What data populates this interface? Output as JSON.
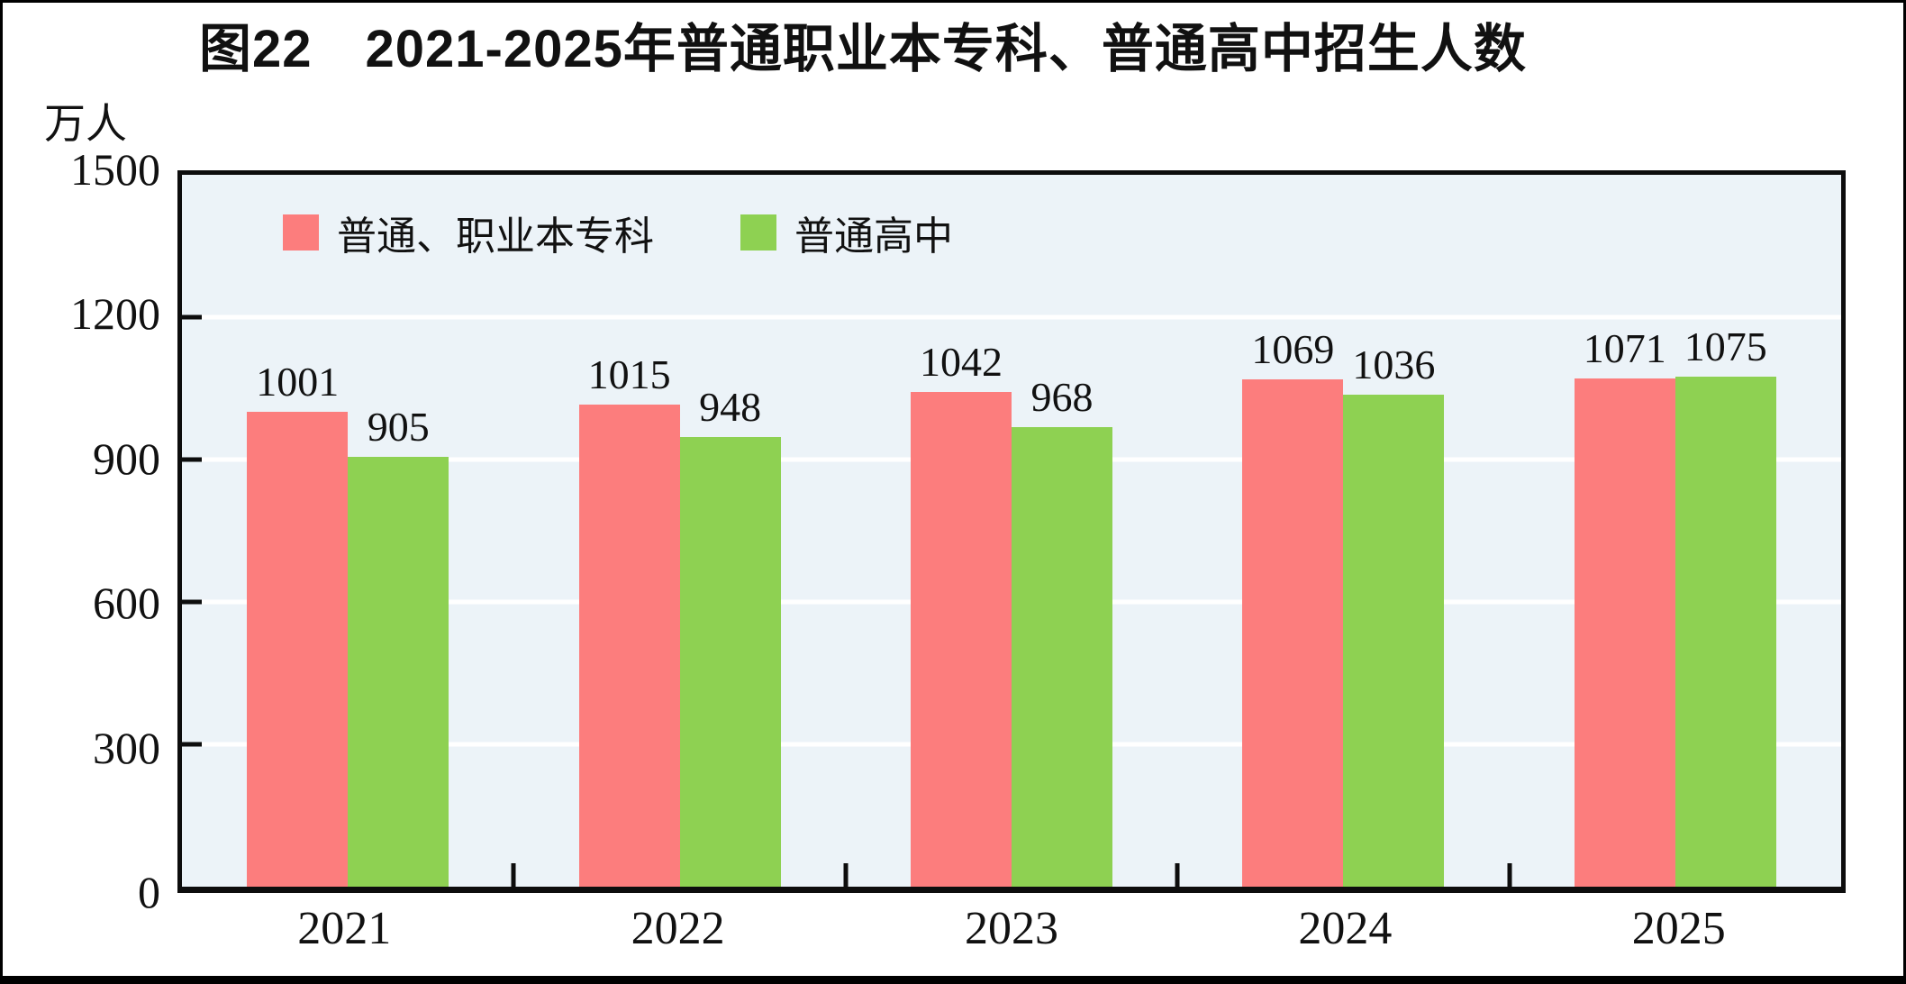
{
  "chart_data": {
    "type": "bar",
    "title": "图22　2021-2025年普通职业本专科、普通高中招生人数",
    "unit": "万人",
    "categories": [
      "2021",
      "2022",
      "2023",
      "2024",
      "2025"
    ],
    "series": [
      {
        "name": "普通、职业本专科",
        "color": "#fc7d7d",
        "values": [
          1001,
          1015,
          1042,
          1069,
          1071
        ]
      },
      {
        "name": "普通高中",
        "color": "#8ed152",
        "values": [
          905,
          948,
          968,
          1036,
          1075
        ]
      }
    ],
    "ylabel": "万人",
    "ylim": [
      0,
      1500
    ],
    "yticks": [
      0,
      300,
      600,
      900,
      1200,
      1500
    ],
    "grid": true,
    "legend_position": "top-left-inside",
    "colors": {
      "plot_background": "#ecf3f8",
      "gridline": "#ffffff",
      "axis": "#0d0d0d",
      "text": "#111111"
    }
  }
}
